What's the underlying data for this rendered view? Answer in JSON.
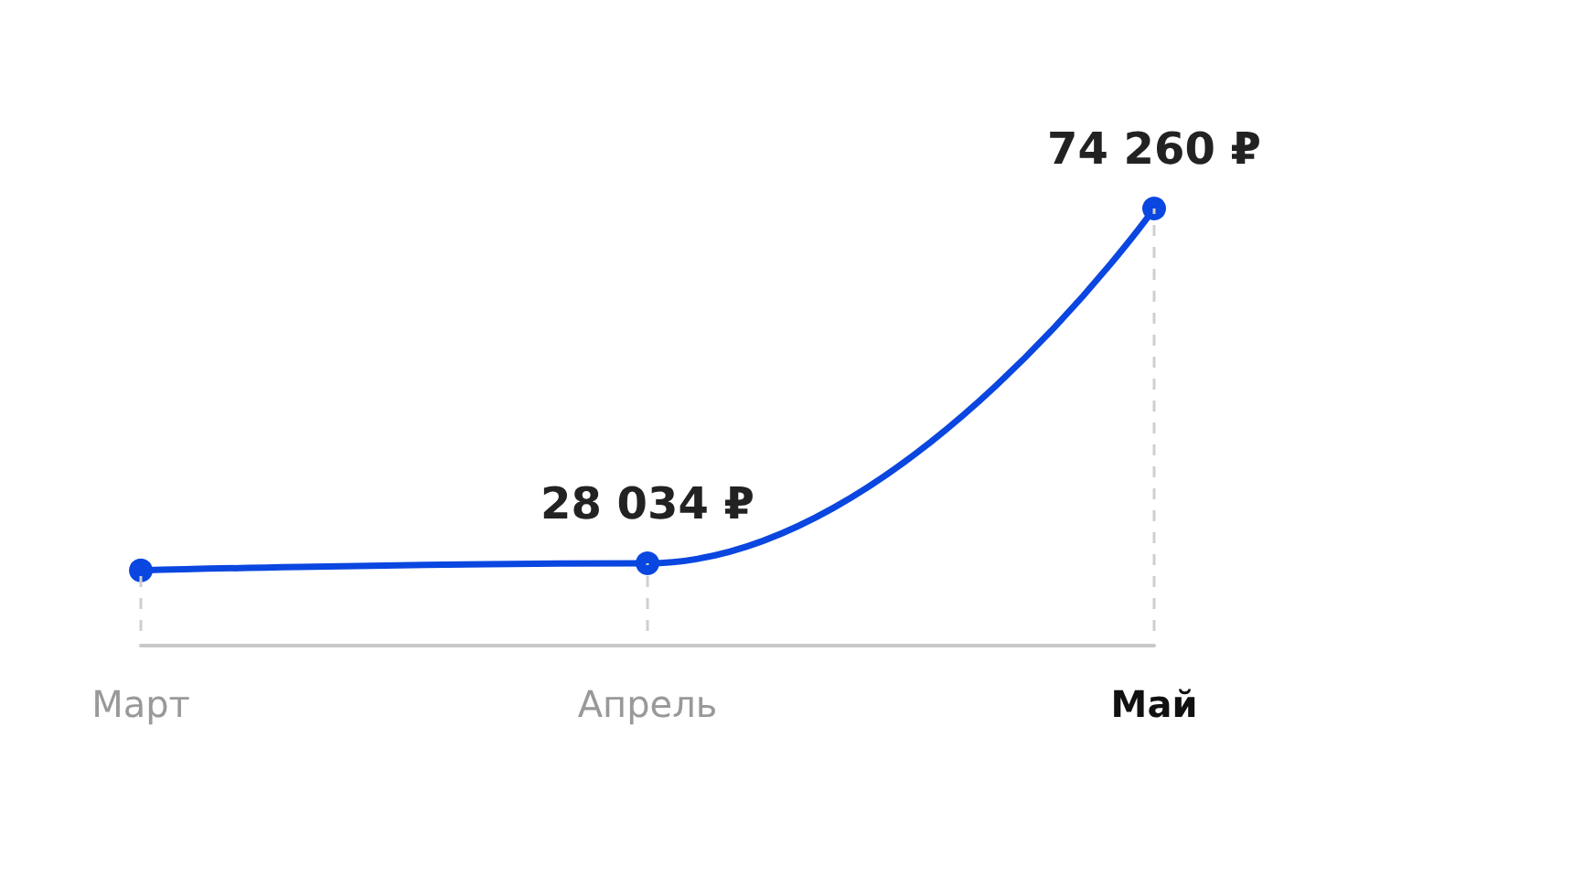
{
  "chart_data": {
    "type": "line",
    "categories": [
      "Март",
      "Апрель",
      "Май"
    ],
    "series": [
      {
        "color": "#0a46e0",
        "values": [
          27100,
          28034,
          74260
        ],
        "value_labels": [
          null,
          "28 034 ₽",
          "74 260 ₽"
        ]
      }
    ],
    "marker": "circle",
    "line_style": "solid"
  }
}
